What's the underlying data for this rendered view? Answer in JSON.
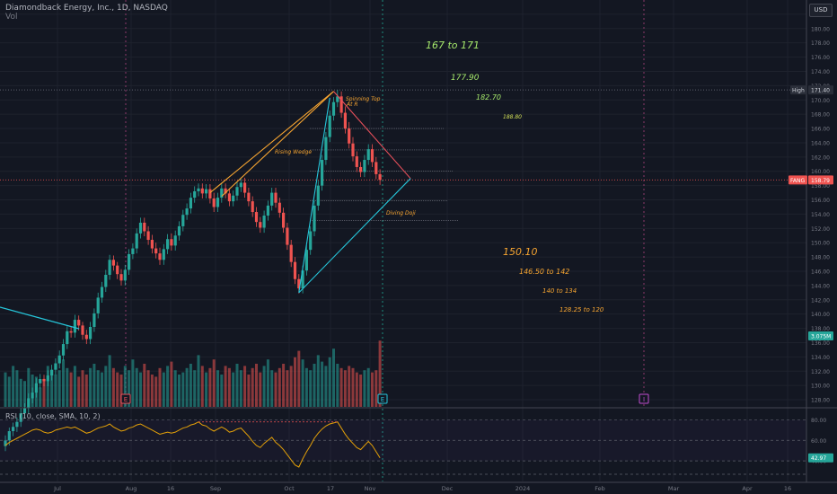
{
  "header": {
    "title": "Diamondback Energy, Inc., 1D, NASDAQ",
    "volume_label": "Vol",
    "currency_button": "USD"
  },
  "rsi": {
    "label": "RSI (10, close, SMA, 10, 2)",
    "current_value": "42.97",
    "levels": [
      "80.00",
      "60.00",
      "40.00"
    ]
  },
  "price_axis": {
    "ticks": [
      "182.00",
      "180.00",
      "178.00",
      "176.00",
      "174.00",
      "172.00",
      "170.00",
      "168.00",
      "166.00",
      "164.00",
      "162.00",
      "160.00",
      "158.00",
      "156.00",
      "154.00",
      "152.00",
      "150.00",
      "148.00",
      "146.00",
      "144.00",
      "142.00",
      "140.00",
      "138.00",
      "136.00",
      "134.00",
      "132.00",
      "130.00",
      "128.00"
    ],
    "high_label": "High",
    "high_value": "171.40",
    "last_label": "FANG",
    "last_value": "158.79",
    "volume_value": "3.075M"
  },
  "time_axis": {
    "ticks": [
      "Jul",
      "Aug",
      "16",
      "Sep",
      "Oct",
      "17",
      "Nov",
      "Dec",
      "2024",
      "Feb",
      "Mar",
      "Apr",
      "16"
    ]
  },
  "annotations": {
    "targets_up": [
      "167 to 171",
      "177.90",
      "182.70",
      "188.80"
    ],
    "targets_down": [
      "150.10",
      "146.50 to 142",
      "140 to 134",
      "128.25 to 120"
    ],
    "pattern_labels": [
      "Rising Wedge",
      "Spinning Top",
      "At R",
      "Diving Doji"
    ]
  },
  "markers": {
    "earnings": "E",
    "dividend": "I"
  },
  "colors": {
    "background": "#131722",
    "up": "#26a69a",
    "down": "#ef5350",
    "grid": "#1e222d",
    "orange": "#f7a531",
    "green_text": "#a5e86b",
    "cyan": "#26c6da",
    "rsi_line": "#e3a008"
  },
  "chart_data": {
    "type": "candlestick",
    "y_axis_range": [
      127,
      184
    ],
    "rsi_range": [
      20,
      90
    ],
    "x": [
      "Jun 20",
      "Jun 21",
      "Jun 22",
      "Jun 23",
      "Jun 26",
      "Jun 27",
      "Jun 28",
      "Jun 29",
      "Jun 30",
      "Jul 3",
      "Jul 5",
      "Jul 6",
      "Jul 7",
      "Jul 10",
      "Jul 11",
      "Jul 12",
      "Jul 13",
      "Jul 14",
      "Jul 17",
      "Jul 18",
      "Jul 19",
      "Jul 20",
      "Jul 21",
      "Jul 24",
      "Jul 25",
      "Jul 26",
      "Jul 27",
      "Jul 28",
      "Jul 31",
      "Aug 1",
      "Aug 2",
      "Aug 3",
      "Aug 4",
      "Aug 7",
      "Aug 8",
      "Aug 9",
      "Aug 10",
      "Aug 11",
      "Aug 14",
      "Aug 15",
      "Aug 16",
      "Aug 17",
      "Aug 18",
      "Aug 21",
      "Aug 22",
      "Aug 23",
      "Aug 24",
      "Aug 25",
      "Aug 28",
      "Aug 29",
      "Aug 30",
      "Aug 31",
      "Sep 1",
      "Sep 5",
      "Sep 6",
      "Sep 7",
      "Sep 8",
      "Sep 11",
      "Sep 12",
      "Sep 13",
      "Sep 14",
      "Sep 15",
      "Sep 18",
      "Sep 19",
      "Sep 20",
      "Sep 21",
      "Sep 22",
      "Sep 25",
      "Sep 26",
      "Sep 27",
      "Sep 28",
      "Sep 29",
      "Oct 2",
      "Oct 3",
      "Oct 4",
      "Oct 5",
      "Oct 6",
      "Oct 9",
      "Oct 10",
      "Oct 11",
      "Oct 12",
      "Oct 13",
      "Oct 16",
      "Oct 17",
      "Oct 18",
      "Oct 19",
      "Oct 20",
      "Oct 23",
      "Oct 24",
      "Oct 25",
      "Oct 26",
      "Oct 27",
      "Oct 30",
      "Oct 31",
      "Nov 1",
      "Nov 2",
      "Nov 3",
      "Nov 6"
    ],
    "open": [
      121.5,
      122.3,
      123.6,
      124.2,
      124.9,
      126.1,
      126.8,
      128.2,
      129.0,
      130.3,
      130.9,
      130.6,
      131.4,
      132.2,
      133.1,
      134.2,
      135.8,
      137.6,
      137.4,
      139.2,
      138.4,
      137.1,
      136.5,
      138.2,
      140.1,
      142.3,
      143.8,
      145.5,
      147.6,
      146.8,
      145.6,
      144.7,
      146.2,
      148.4,
      149.2,
      151.3,
      152.8,
      151.6,
      150.4,
      149.2,
      148.5,
      147.6,
      149.1,
      150.5,
      149.6,
      151.0,
      152.3,
      153.9,
      154.8,
      156.3,
      157.2,
      157.6,
      156.9,
      157.5,
      156.2,
      155.0,
      156.3,
      157.6,
      156.9,
      155.8,
      156.6,
      157.8,
      158.4,
      157.0,
      155.8,
      154.3,
      152.9,
      152.1,
      153.8,
      155.2,
      157.0,
      155.6,
      154.2,
      152.1,
      149.7,
      147.3,
      144.9,
      143.6,
      146.1,
      149.0,
      151.6,
      155.2,
      158.0,
      161.6,
      164.8,
      167.8,
      169.7,
      170.5,
      168.2,
      166.0,
      163.9,
      162.1,
      160.6,
      159.9,
      161.6,
      163.1,
      161.3,
      159.6
    ],
    "close": [
      122.3,
      123.6,
      124.2,
      124.9,
      126.1,
      126.8,
      128.2,
      129.0,
      130.3,
      130.9,
      130.6,
      131.4,
      132.2,
      133.1,
      134.2,
      135.8,
      137.6,
      137.4,
      139.2,
      138.4,
      137.1,
      136.5,
      138.2,
      140.1,
      142.3,
      143.8,
      145.5,
      147.6,
      146.8,
      145.6,
      144.7,
      146.2,
      148.4,
      149.2,
      151.3,
      152.8,
      151.6,
      150.4,
      149.2,
      148.5,
      147.6,
      149.1,
      150.5,
      149.6,
      151.0,
      152.3,
      153.9,
      154.8,
      156.3,
      157.2,
      157.6,
      156.9,
      157.5,
      156.2,
      155.0,
      156.3,
      157.6,
      156.9,
      155.8,
      156.6,
      157.8,
      158.4,
      157.0,
      155.8,
      154.3,
      152.9,
      152.1,
      153.8,
      155.2,
      157.0,
      155.6,
      154.2,
      152.1,
      149.7,
      147.3,
      144.9,
      143.6,
      146.1,
      149.0,
      151.6,
      155.2,
      158.0,
      161.6,
      164.8,
      167.8,
      169.7,
      170.5,
      168.2,
      166.0,
      163.9,
      162.1,
      160.6,
      159.9,
      161.6,
      163.1,
      161.3,
      159.6,
      158.8
    ],
    "high": [
      123.0,
      124.1,
      124.8,
      125.5,
      126.8,
      127.5,
      128.9,
      129.7,
      131.0,
      131.6,
      131.5,
      132.1,
      132.9,
      133.8,
      134.9,
      136.5,
      138.3,
      138.3,
      139.9,
      139.8,
      138.9,
      137.8,
      138.9,
      140.8,
      143.0,
      144.5,
      146.2,
      148.3,
      148.2,
      147.3,
      146.3,
      146.9,
      149.1,
      149.9,
      152.0,
      153.5,
      153.5,
      152.3,
      151.1,
      150.0,
      149.3,
      149.8,
      151.2,
      151.3,
      151.7,
      153.0,
      154.6,
      155.5,
      157.0,
      157.9,
      158.3,
      158.3,
      158.2,
      158.2,
      157.0,
      157.0,
      158.3,
      158.3,
      157.6,
      157.3,
      158.5,
      159.1,
      159.1,
      157.7,
      156.5,
      155.0,
      153.6,
      154.5,
      155.9,
      157.7,
      157.7,
      156.3,
      154.9,
      152.8,
      150.4,
      148.0,
      145.6,
      146.8,
      149.7,
      152.3,
      155.9,
      158.7,
      162.3,
      165.5,
      168.5,
      170.4,
      171.4,
      171.2,
      169.1,
      166.9,
      164.8,
      162.8,
      161.3,
      162.3,
      163.8,
      163.8,
      162.0,
      160.3
    ],
    "low": [
      120.8,
      121.6,
      122.9,
      123.5,
      124.2,
      125.4,
      126.1,
      127.5,
      128.3,
      129.6,
      129.9,
      129.9,
      130.7,
      131.5,
      132.4,
      133.5,
      135.1,
      136.7,
      136.7,
      137.7,
      136.4,
      135.8,
      135.8,
      137.5,
      139.4,
      141.6,
      143.1,
      144.8,
      146.1,
      144.9,
      144.0,
      144.0,
      145.5,
      147.7,
      148.5,
      150.6,
      150.9,
      149.7,
      148.5,
      147.8,
      146.9,
      146.9,
      148.4,
      148.9,
      148.9,
      150.3,
      151.6,
      153.2,
      154.1,
      155.6,
      156.5,
      156.2,
      156.2,
      155.5,
      154.3,
      154.3,
      155.6,
      156.2,
      155.1,
      155.1,
      155.9,
      157.1,
      156.3,
      155.1,
      153.6,
      152.2,
      151.4,
      151.4,
      153.1,
      154.5,
      154.9,
      153.5,
      151.4,
      149.0,
      146.6,
      144.2,
      142.9,
      142.9,
      145.4,
      148.3,
      150.9,
      154.5,
      157.3,
      160.9,
      164.1,
      167.1,
      169.0,
      167.5,
      165.3,
      163.2,
      161.4,
      159.9,
      159.2,
      159.2,
      160.9,
      160.6,
      158.9,
      158.1
    ],
    "volume_millions": [
      1.6,
      1.4,
      1.9,
      1.7,
      1.3,
      1.2,
      1.8,
      1.5,
      1.4,
      0.9,
      1.3,
      1.9,
      1.6,
      1.5,
      1.7,
      2.2,
      1.8,
      1.6,
      1.9,
      1.4,
      1.7,
      1.5,
      1.8,
      2.0,
      1.7,
      1.6,
      1.9,
      2.4,
      1.8,
      1.6,
      1.5,
      1.9,
      1.7,
      2.2,
      1.8,
      1.6,
      2.0,
      1.7,
      1.5,
      1.4,
      1.8,
      1.6,
      1.9,
      2.1,
      1.7,
      1.5,
      1.6,
      1.8,
      2.0,
      1.7,
      2.4,
      1.9,
      1.6,
      1.8,
      2.2,
      1.7,
      1.5,
      1.9,
      1.8,
      1.6,
      2.0,
      1.7,
      1.9,
      1.5,
      1.8,
      2.0,
      1.6,
      1.9,
      2.2,
      1.7,
      1.6,
      1.8,
      2.0,
      1.7,
      1.9,
      2.3,
      2.6,
      2.2,
      1.8,
      1.7,
      2.0,
      2.4,
      2.1,
      1.9,
      2.3,
      2.7,
      2.0,
      1.8,
      1.7,
      1.9,
      1.8,
      1.6,
      1.5,
      1.7,
      1.8,
      1.6,
      1.7,
      3.075
    ],
    "rsi": [
      55,
      58,
      60,
      62,
      64,
      66,
      68,
      70,
      71,
      70,
      68,
      67,
      68,
      70,
      71,
      72,
      73,
      72,
      73,
      71,
      69,
      67,
      68,
      70,
      72,
      73,
      74,
      76,
      73,
      71,
      69,
      70,
      72,
      73,
      75,
      76,
      74,
      72,
      70,
      68,
      66,
      67,
      68,
      67,
      68,
      70,
      72,
      73,
      75,
      76,
      78,
      75,
      74,
      71,
      69,
      71,
      73,
      71,
      68,
      69,
      71,
      72,
      68,
      64,
      59,
      55,
      53,
      57,
      60,
      63,
      58,
      55,
      51,
      46,
      41,
      36,
      34,
      42,
      49,
      55,
      62,
      67,
      71,
      74,
      76,
      77,
      78,
      72,
      66,
      61,
      57,
      53,
      51,
      55,
      59,
      55,
      49,
      43
    ],
    "trendlines": [
      {
        "name": "Rising Wedge upper",
        "from": [
          "Sep 5",
          157.0
        ],
        "to": [
          "Oct 19",
          171.2
        ]
      },
      {
        "name": "Rising Wedge lower",
        "from": [
          "Sep 8",
          156.5
        ],
        "to": [
          "Oct 19",
          171.2
        ]
      },
      {
        "name": "Triangle resistance",
        "from": [
          "Oct 19",
          171.2
        ],
        "to": [
          "Nov 14",
          159.0
        ]
      },
      {
        "name": "Triangle support",
        "from": [
          "Oct 6",
          143.0
        ],
        "to": [
          "Nov 14",
          159.0
        ]
      },
      {
        "name": "Spike line",
        "from": [
          "Oct 6",
          143.0
        ],
        "to": [
          "Oct 18",
          170.3
        ]
      }
    ]
  }
}
